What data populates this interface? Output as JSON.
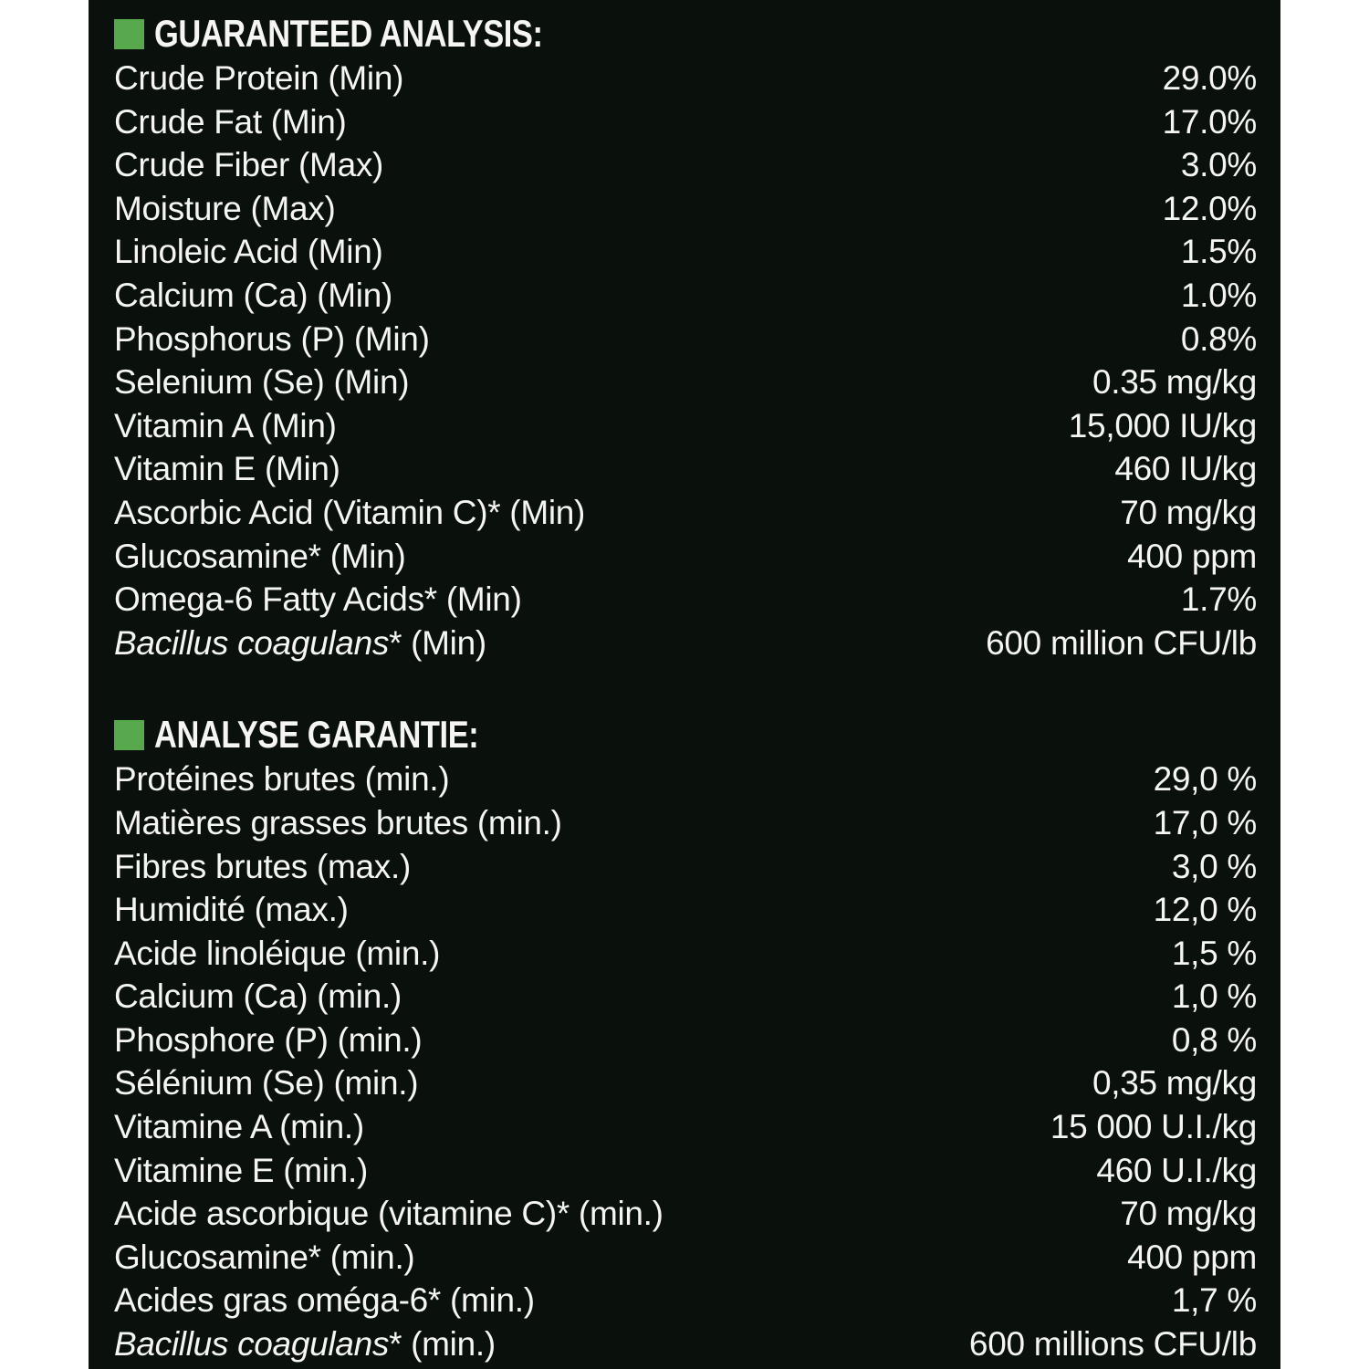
{
  "panel": {
    "background_color": "#0a100c",
    "text_color": "#f5f6f4",
    "bullet_color": "#58a84e"
  },
  "sections": [
    {
      "title": "GUARANTEED ANALYSIS:",
      "rows": [
        {
          "label": "Crude Protein (Min)",
          "value": "29.0%"
        },
        {
          "label": "Crude Fat (Min)",
          "value": "17.0%"
        },
        {
          "label": "Crude Fiber (Max)",
          "value": "3.0%"
        },
        {
          "label": "Moisture (Max)",
          "value": "12.0%"
        },
        {
          "label": "Linoleic Acid (Min)",
          "value": "1.5%"
        },
        {
          "label": "Calcium (Ca) (Min)",
          "value": "1.0%"
        },
        {
          "label": "Phosphorus (P) (Min)",
          "value": "0.8%"
        },
        {
          "label": "Selenium (Se) (Min)",
          "value": "0.35 mg/kg"
        },
        {
          "label": "Vitamin A (Min)",
          "value": "15,000 IU/kg"
        },
        {
          "label": "Vitamin E (Min)",
          "value": "460 IU/kg"
        },
        {
          "label": "Ascorbic Acid (Vitamin C)* (Min)",
          "value": "70 mg/kg"
        },
        {
          "label": "Glucosamine* (Min)",
          "value": "400 ppm"
        },
        {
          "label": "Omega-6 Fatty Acids* (Min)",
          "value": "1.7%"
        },
        {
          "label_italic": "Bacillus coagulans",
          "label_rest": "* (Min)",
          "value": "600 million CFU/lb"
        }
      ]
    },
    {
      "title": "ANALYSE GARANTIE:",
      "rows": [
        {
          "label": "Protéines brutes (min.)",
          "value": "29,0 %"
        },
        {
          "label": "Matières grasses brutes (min.)",
          "value": "17,0 %"
        },
        {
          "label": "Fibres brutes (max.)",
          "value": "3,0 %"
        },
        {
          "label": "Humidité (max.)",
          "value": "12,0 %"
        },
        {
          "label": "Acide linoléique (min.)",
          "value": "1,5 %"
        },
        {
          "label": "Calcium (Ca) (min.)",
          "value": "1,0 %"
        },
        {
          "label": "Phosphore (P) (min.)",
          "value": "0,8 %"
        },
        {
          "label": "Sélénium (Se) (min.)",
          "value": "0,35 mg/kg"
        },
        {
          "label": "Vitamine A (min.)",
          "value": "15 000 U.I./kg"
        },
        {
          "label": "Vitamine E (min.)",
          "value": "460 U.I./kg"
        },
        {
          "label": "Acide ascorbique (vitamine C)* (min.)",
          "value": "70 mg/kg"
        },
        {
          "label": "Glucosamine* (min.)",
          "value": "400 ppm"
        },
        {
          "label": "Acides gras oméga-6* (min.)",
          "value": "1,7 %"
        },
        {
          "label_italic": "Bacillus coagulans",
          "label_rest": "* (min.)",
          "value": "600 millions CFU/lb"
        }
      ]
    }
  ]
}
